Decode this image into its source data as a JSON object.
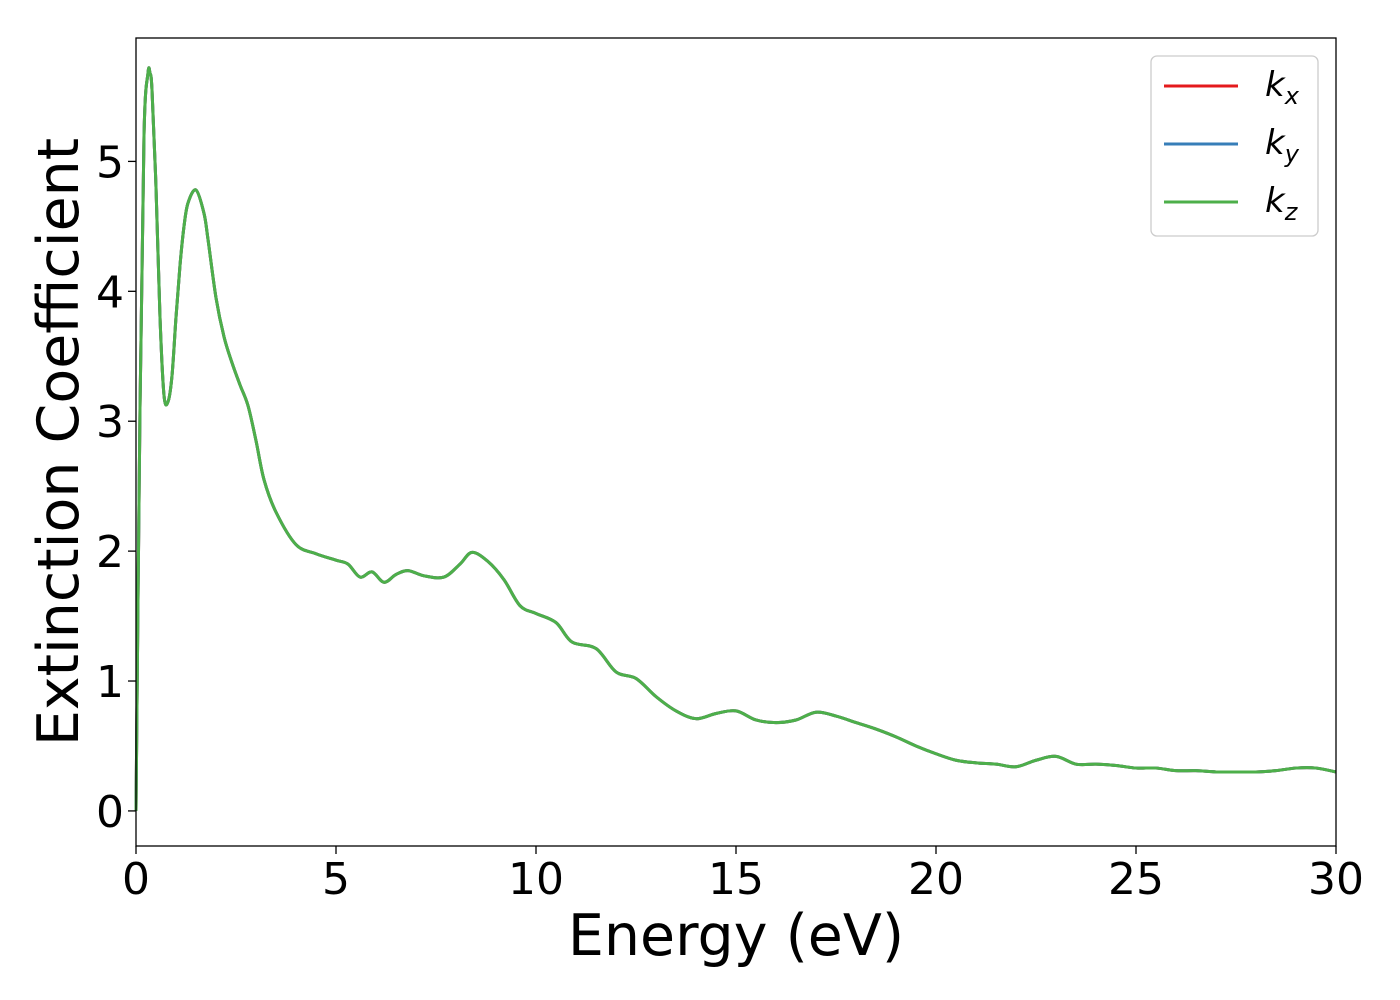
{
  "chart_data": {
    "type": "line",
    "xlabel": "Energy (eV)",
    "ylabel": "Extinction Coefficient",
    "xlim": [
      0,
      30
    ],
    "ylim": [
      -0.27,
      5.95
    ],
    "xticks": [
      0,
      5,
      10,
      15,
      20,
      25,
      30
    ],
    "yticks": [
      0,
      1,
      2,
      3,
      4,
      5
    ],
    "grid": false,
    "legend_position": "top-right",
    "series": [
      {
        "name": "k_x",
        "label_base": "k",
        "label_sub": "x",
        "color": "#e41a1c"
      },
      {
        "name": "k_y",
        "label_base": "k",
        "label_sub": "y",
        "color": "#377eb8"
      },
      {
        "name": "k_z",
        "label_base": "k",
        "label_sub": "z",
        "color": "#4daf4a"
      }
    ],
    "x": [
      0,
      0.1,
      0.2,
      0.3,
      0.35,
      0.4,
      0.5,
      0.6,
      0.7,
      0.8,
      0.9,
      1.0,
      1.1,
      1.2,
      1.3,
      1.5,
      1.7,
      1.8,
      2.0,
      2.2,
      2.4,
      2.6,
      2.8,
      3.0,
      3.2,
      3.5,
      4.0,
      4.5,
      5.0,
      5.3,
      5.6,
      5.9,
      6.2,
      6.5,
      6.8,
      7.2,
      7.7,
      8.1,
      8.4,
      8.8,
      9.2,
      9.6,
      10.0,
      10.5,
      10.9,
      11.5,
      12.0,
      12.5,
      13.0,
      13.5,
      14.0,
      14.5,
      15.0,
      15.5,
      16.0,
      16.5,
      17.0,
      17.5,
      18.0,
      18.5,
      19.0,
      19.5,
      20.0,
      20.5,
      21.0,
      21.5,
      22.0,
      22.5,
      23.0,
      23.5,
      24.0,
      24.5,
      25.0,
      25.5,
      26.0,
      26.5,
      27.0,
      27.5,
      28.0,
      28.5,
      29.0,
      29.5,
      30.0
    ],
    "y": [
      0.0,
      3.1,
      5.2,
      5.68,
      5.68,
      5.55,
      4.8,
      3.8,
      3.2,
      3.15,
      3.35,
      3.8,
      4.2,
      4.5,
      4.68,
      4.78,
      4.6,
      4.4,
      3.95,
      3.65,
      3.45,
      3.28,
      3.12,
      2.85,
      2.55,
      2.3,
      2.05,
      1.98,
      1.93,
      1.9,
      1.8,
      1.84,
      1.76,
      1.82,
      1.85,
      1.81,
      1.8,
      1.9,
      1.99,
      1.92,
      1.78,
      1.58,
      1.52,
      1.45,
      1.3,
      1.25,
      1.07,
      1.02,
      0.88,
      0.77,
      0.71,
      0.75,
      0.77,
      0.7,
      0.68,
      0.7,
      0.76,
      0.73,
      0.68,
      0.63,
      0.57,
      0.5,
      0.44,
      0.39,
      0.37,
      0.36,
      0.34,
      0.39,
      0.42,
      0.36,
      0.36,
      0.35,
      0.33,
      0.33,
      0.31,
      0.31,
      0.3,
      0.3,
      0.3,
      0.31,
      0.33,
      0.33,
      0.3
    ]
  }
}
